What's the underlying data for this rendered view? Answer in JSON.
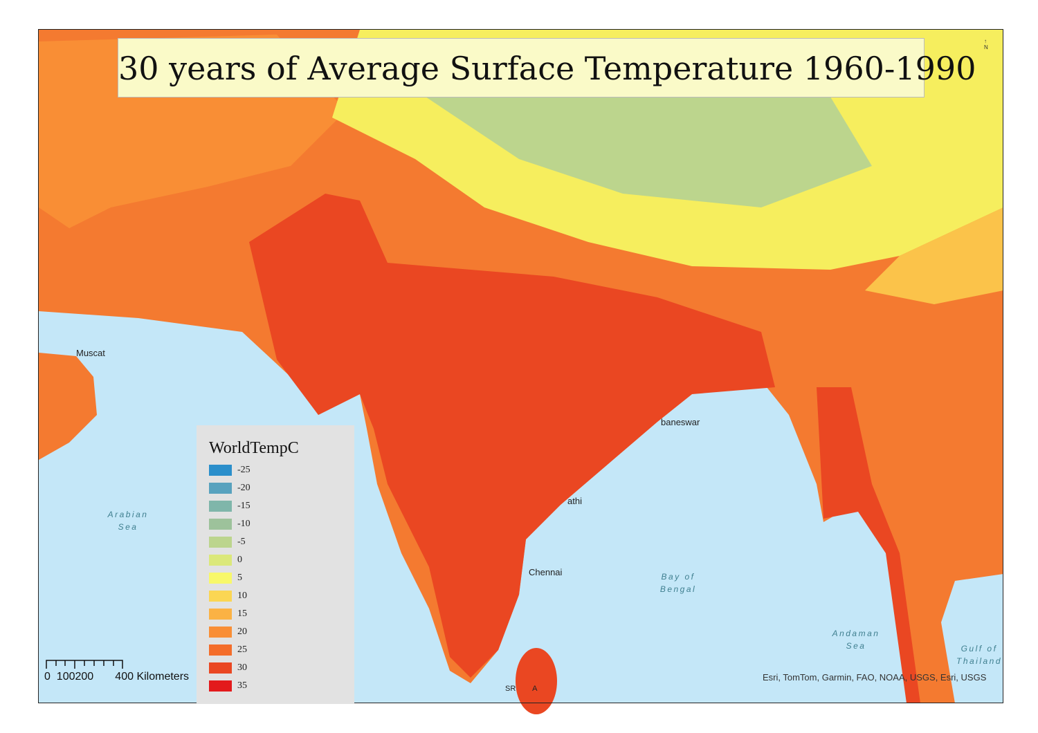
{
  "title": "30 years of Average Surface Temperature 1960-1990",
  "legend": {
    "title": "WorldTempC",
    "items": [
      {
        "label": "-25",
        "color": "#2b8fcb"
      },
      {
        "label": "-20",
        "color": "#58a2be"
      },
      {
        "label": "-15",
        "color": "#7fb6aa"
      },
      {
        "label": "-10",
        "color": "#9dc29b"
      },
      {
        "label": "-5",
        "color": "#bcd58d"
      },
      {
        "label": "0",
        "color": "#dbe87a"
      },
      {
        "label": "5",
        "color": "#f8f86a"
      },
      {
        "label": "10",
        "color": "#fbd653"
      },
      {
        "label": "15",
        "color": "#fbb244"
      },
      {
        "label": "20",
        "color": "#f98e35"
      },
      {
        "label": "25",
        "color": "#f46d2a"
      },
      {
        "label": "30",
        "color": "#ea4722"
      },
      {
        "label": "35",
        "color": "#e31a1c"
      }
    ]
  },
  "places": {
    "muscat": "Muscat",
    "bhubaneswar": "baneswar",
    "visakhapatnam": "athi",
    "chennai": "Chennai",
    "sri_lanka": "SR        A"
  },
  "seas": {
    "arabian": [
      "Arabian",
      "Sea"
    ],
    "bengal": [
      "Bay of",
      "Bengal"
    ],
    "andaman": [
      "Andaman",
      "Sea"
    ],
    "thailand": [
      "Gulf of",
      "Thailand"
    ]
  },
  "scale_bar": {
    "text": "0  100200       400 Kilometers"
  },
  "attribution": "Esri, TomTom, Garmin, FAO, NOAA, USGS, Esri, USGS",
  "north_arrow": "N",
  "colors": {
    "sea": "#c4e7f8"
  }
}
